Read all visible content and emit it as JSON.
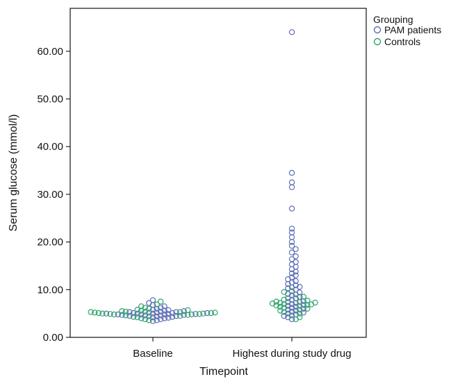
{
  "chart_data": {
    "type": "scatter",
    "subtype": "dot-strip",
    "title": "",
    "xlabel": "Timepoint",
    "ylabel": "Serum glucose (mmol/l)",
    "ylim": [
      0,
      69
    ],
    "grid": false,
    "legend_position": "top-right-outside",
    "categories": [
      "Baseline",
      "Highest during study drug"
    ],
    "y_ticks": [
      "0.00",
      "10.00",
      "20.00",
      "30.00",
      "40.00",
      "50.00",
      "60.00"
    ],
    "legend_title": "Grouping",
    "series": [
      {
        "name": "PAM patients",
        "color": "#5b6db3",
        "points": {
          "Baseline": [
            3.4,
            3.6,
            3.8,
            4.0,
            4.1,
            4.2,
            4.3,
            4.4,
            4.5,
            4.5,
            4.6,
            4.6,
            4.7,
            4.7,
            4.8,
            4.8,
            4.8,
            4.9,
            4.9,
            5.0,
            5.0,
            5.0,
            5.1,
            5.1,
            5.1,
            5.2,
            5.2,
            5.3,
            5.3,
            5.4,
            5.5,
            5.6,
            5.7,
            5.8,
            6.0,
            6.2,
            6.5,
            6.8,
            7.2,
            7.8
          ],
          "Highest during study drug": [
            64.0,
            34.5,
            32.5,
            31.5,
            27.0,
            22.8,
            22.0,
            21.0,
            20.0,
            19.2,
            18.5,
            17.8,
            17.0,
            16.4,
            15.8,
            15.3,
            14.8,
            14.3,
            13.8,
            13.4,
            13.0,
            12.6,
            12.2,
            11.8,
            11.5,
            11.2,
            10.9,
            10.6,
            10.3,
            10.0,
            9.7,
            9.4,
            9.1,
            8.8,
            8.5,
            8.2,
            7.9,
            7.6,
            7.4,
            7.2,
            7.0,
            6.8,
            6.6,
            6.4,
            6.2,
            6.0,
            5.8,
            5.6,
            5.4,
            5.2,
            5.0,
            4.8,
            4.5,
            4.2,
            3.8
          ]
        }
      },
      {
        "name": "Controls",
        "color": "#2ea36b",
        "points": {
          "Baseline": [
            3.6,
            3.8,
            4.0,
            4.2,
            4.3,
            4.4,
            4.5,
            4.6,
            4.7,
            4.8,
            4.8,
            4.9,
            4.9,
            5.0,
            5.0,
            5.1,
            5.1,
            5.2,
            5.2,
            5.3,
            5.3,
            5.4,
            5.4,
            5.5,
            5.6,
            5.7,
            5.8,
            6.0,
            6.2,
            6.5,
            6.9,
            7.5
          ],
          "Highest during study drug": [
            3.8,
            4.2,
            4.6,
            5.0,
            5.3,
            5.6,
            5.8,
            6.0,
            6.2,
            6.4,
            6.6,
            6.7,
            6.8,
            6.9,
            7.0,
            7.1,
            7.2,
            7.3,
            7.4,
            7.5,
            7.7,
            7.9,
            8.2,
            8.5,
            9.0,
            9.5,
            10.5
          ]
        }
      }
    ]
  }
}
